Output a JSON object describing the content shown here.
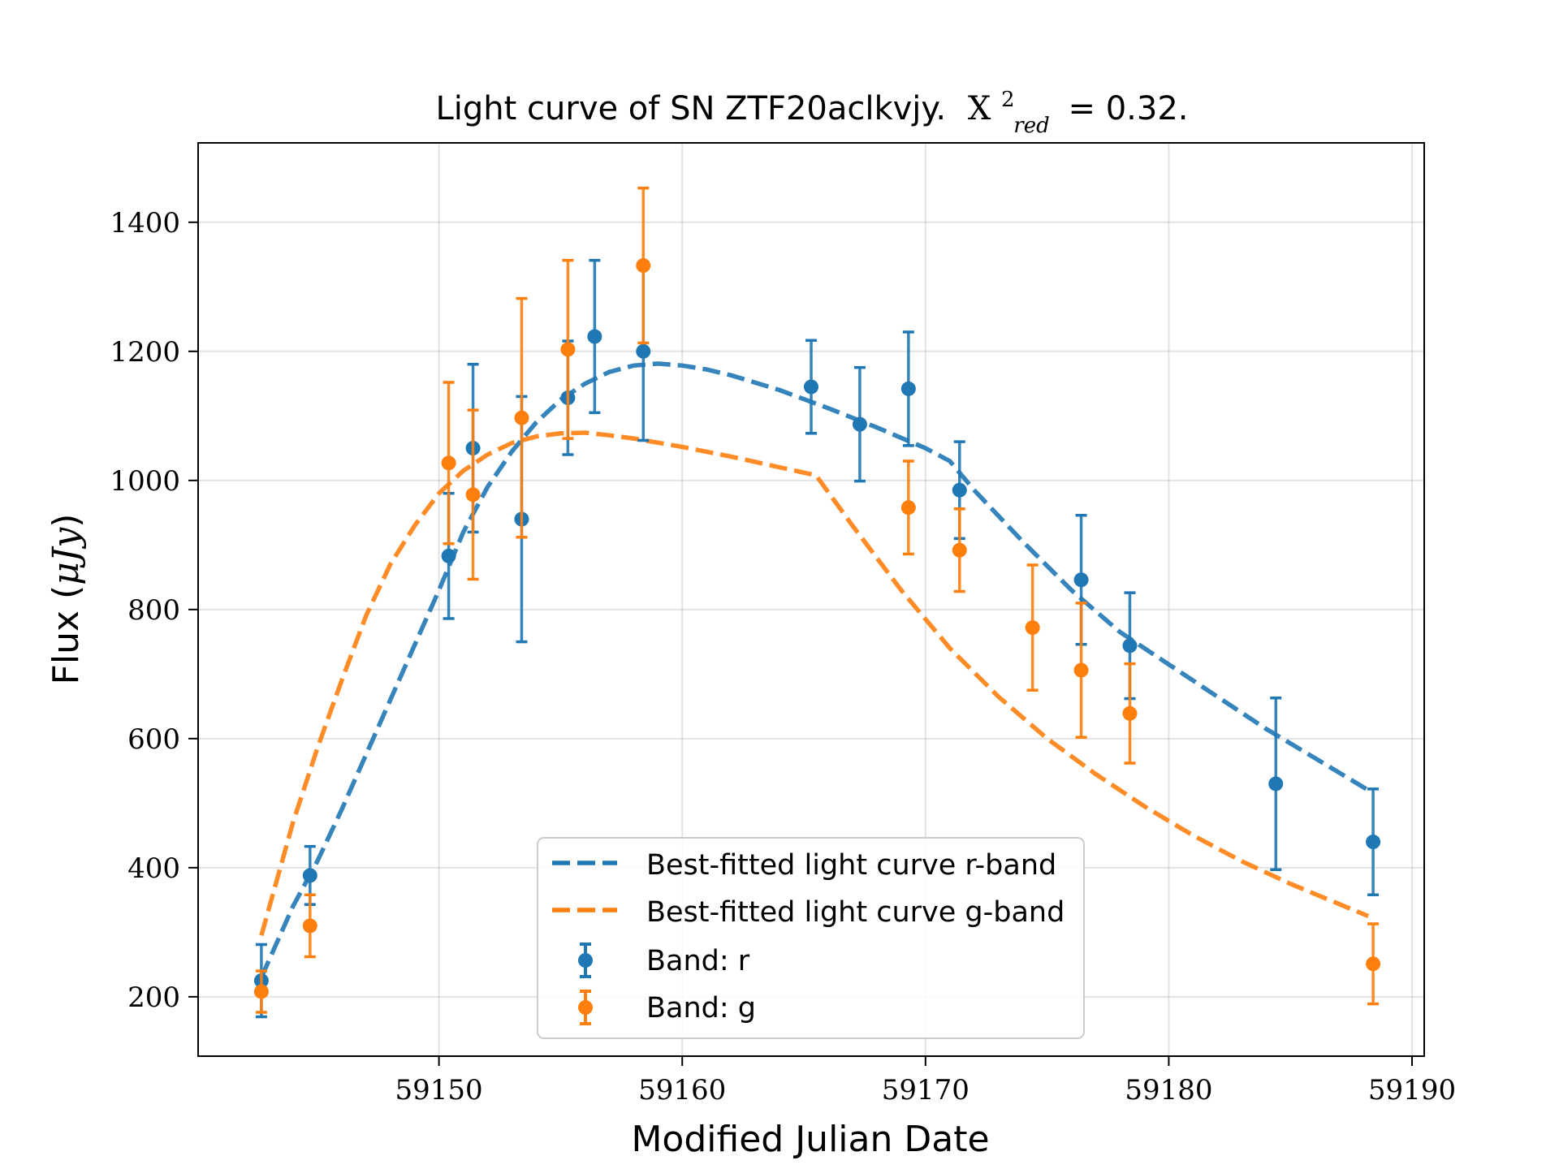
{
  "chart_data": {
    "type": "scatter",
    "title": "Light curve of SN ZTF20aclkvjy.",
    "title_stat_symbol": "X",
    "title_stat_sup": "2",
    "title_stat_sub": "red",
    "title_stat_value": "= 0.32.",
    "xlabel": "Modified Julian Date",
    "ylabel": "Flux (",
    "ylabel_unit": "μJy",
    "ylabel_close": ")",
    "xlim": [
      59140.1,
      59190.5
    ],
    "ylim": [
      108,
      1523
    ],
    "xticks": [
      59150,
      59160,
      59170,
      59180,
      59190
    ],
    "yticks": [
      200,
      400,
      600,
      800,
      1000,
      1200,
      1400
    ],
    "grid": true,
    "legend_position": "lower-center",
    "colors": {
      "r": "#1f77b4",
      "g": "#ff7f0e"
    },
    "legend": {
      "fit_r": "Best-fitted light curve r-band",
      "fit_g": "Best-fitted light curve g-band",
      "band_r": "Band: r",
      "band_g": "Band: g"
    },
    "series": [
      {
        "name": "Band: r",
        "color": "#1f77b4",
        "x": [
          59142.7,
          59144.7,
          59150.4,
          59151.4,
          59153.4,
          59155.3,
          59156.4,
          59158.4,
          59165.3,
          59167.3,
          59169.3,
          59171.4,
          59176.4,
          59178.4,
          59184.4,
          59188.4
        ],
        "y": [
          225,
          388,
          883,
          1050,
          940,
          1128,
          1223,
          1200,
          1145,
          1087,
          1142,
          985,
          846,
          744,
          530,
          440
        ],
        "err": [
          56,
          45,
          97,
          130,
          190,
          88,
          118,
          138,
          72,
          88,
          88,
          75,
          100,
          82,
          133,
          82
        ]
      },
      {
        "name": "Band: g",
        "color": "#ff7f0e",
        "x": [
          59142.7,
          59144.7,
          59150.4,
          59151.4,
          59153.4,
          59155.3,
          59158.4,
          59169.3,
          59171.4,
          59174.4,
          59176.4,
          59178.4,
          59188.4
        ],
        "y": [
          208,
          310,
          1027,
          978,
          1097,
          1203,
          1333,
          958,
          892,
          772,
          706,
          639,
          251
        ],
        "err": [
          32,
          48,
          125,
          131,
          185,
          138,
          120,
          72,
          64,
          97,
          104,
          77,
          62
        ]
      }
    ],
    "fits": [
      {
        "name": "Best-fitted light curve r-band",
        "color": "#1f77b4",
        "x": [
          59142.7,
          59144,
          59145,
          59146,
          59148,
          59150,
          59151,
          59152,
          59153,
          59154,
          59155,
          59156,
          59157,
          59158,
          59159,
          59160,
          59161,
          59162,
          59164,
          59166,
          59168,
          59170,
          59171,
          59172,
          59174,
          59176,
          59178,
          59180,
          59182,
          59184,
          59186,
          59188.2
        ],
        "y": [
          230,
          340,
          410,
          490,
          660,
          830,
          920,
          990,
          1045,
          1090,
          1125,
          1150,
          1168,
          1178,
          1181,
          1178,
          1172,
          1163,
          1140,
          1112,
          1082,
          1050,
          1030,
          985,
          905,
          830,
          765,
          715,
          665,
          615,
          570,
          520
        ]
      },
      {
        "name": "Best-fitted light curve g-band",
        "color": "#ff7f0e",
        "x": [
          59142.7,
          59144,
          59145,
          59146,
          59147,
          59148,
          59149,
          59150,
          59151,
          59152,
          59153,
          59154,
          59155,
          59156,
          59157,
          59158,
          59160,
          59162,
          59165.5,
          59167,
          59169,
          59171,
          59173,
          59175,
          59177,
          59179,
          59181,
          59183,
          59185,
          59188.2
        ],
        "y": [
          295,
          470,
          585,
          690,
          790,
          870,
          930,
          980,
          1015,
          1040,
          1058,
          1068,
          1073,
          1074,
          1070,
          1065,
          1052,
          1037,
          1008,
          930,
          830,
          740,
          665,
          600,
          545,
          495,
          450,
          410,
          375,
          325
        ]
      }
    ]
  }
}
